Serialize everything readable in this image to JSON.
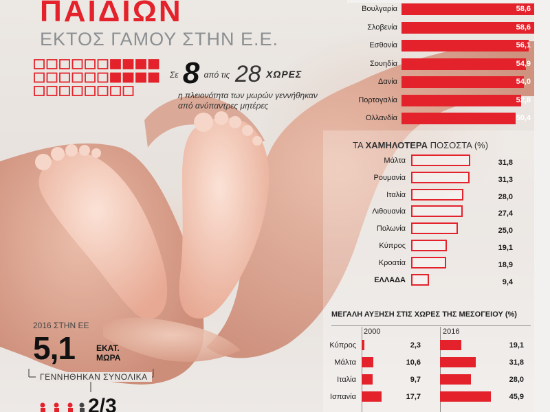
{
  "header": {
    "title": "ΠΑΙΔΙΩΝ",
    "subtitle": "ΕΚΤΟΣ ΓΑΜΟΥ ΣΤΗΝ Ε.Ε."
  },
  "stat_countries": {
    "prefix": "Σε",
    "count": "8",
    "middle": "από τις",
    "total": "28",
    "word": "ΧΩΡΕΣ",
    "desc_line1": "η πλειονότητα των μωρών γεννήθηκαν",
    "desc_line2": "από ανύπαντρες μητέρες",
    "highlighted_icons": 8,
    "total_icons": 28
  },
  "births": {
    "label": "2016 ΣΤΗΝ ΕΕ",
    "value": "5,1",
    "unit_line1": "ΕΚΑΤ.",
    "unit_line2": "ΜΩΡΑ",
    "desc": "ΓΕΝΝΗΘΗΚΑΝ ΣΥΝΟΛΙΚΑ",
    "fraction_visible": "2/3"
  },
  "colors": {
    "accent": "#e3222b",
    "text": "#1a1a1a",
    "muted": "#8b8f92"
  },
  "chart_data": [
    {
      "type": "bar",
      "id": "highest",
      "orientation": "horizontal",
      "unit": "%",
      "categories": [
        "Βουλγαρία",
        "Σλοβενία",
        "Εσθονία",
        "Σουηδία",
        "Δανία",
        "Πορτογαλία",
        "Ολλανδία"
      ],
      "values": [
        "58,6",
        "58,6",
        "56,1",
        "54,9",
        "54,0",
        "52,8",
        "50,4"
      ],
      "numeric_values": [
        58.6,
        58.6,
        56.1,
        54.9,
        54.0,
        52.8,
        50.4
      ],
      "style": "filled"
    },
    {
      "type": "bar",
      "id": "lowest",
      "orientation": "horizontal",
      "heading_prefix": "ΤΑ",
      "heading_bold": "ΧΑΜΗΛΟΤΕΡΑ",
      "heading_suffix": "ΠΟΣΟΣΤΑ (%)",
      "categories": [
        "Μάλτα",
        "Ρουμανία",
        "Ιταλία",
        "Λιθουανία",
        "Πολωνία",
        "Κύπρος",
        "Κροατία",
        "ΕΛΛΑΔΑ"
      ],
      "values": [
        "31,8",
        "31,3",
        "28,0",
        "27,4",
        "25,0",
        "19,1",
        "18,9",
        "9,4"
      ],
      "numeric_values": [
        31.8,
        31.3,
        28.0,
        27.4,
        25.0,
        19.1,
        18.9,
        9.4
      ],
      "emphasized": "ΕΛΛΑΔΑ",
      "style": "outline"
    },
    {
      "type": "bar",
      "id": "mediterranean",
      "orientation": "horizontal",
      "title": "ΜΕΓΑΛΗ ΑΥΞΗΣΗ ΣΤΙΣ ΧΩΡΕΣ ΤΗΣ ΜΕΣΟΓΕΙΟΥ (%)",
      "categories": [
        "Κύπρος",
        "Μάλτα",
        "Ιταλία",
        "Ισπανία"
      ],
      "series": [
        {
          "name": "2000",
          "values": [
            "2,3",
            "10,6",
            "9,7",
            "17,7"
          ],
          "numeric_values": [
            2.3,
            10.6,
            9.7,
            17.7
          ]
        },
        {
          "name": "2016",
          "values": [
            "19,1",
            "31,8",
            "28,0",
            "45,9"
          ],
          "numeric_values": [
            19.1,
            31.8,
            28.0,
            45.9
          ]
        }
      ]
    }
  ]
}
